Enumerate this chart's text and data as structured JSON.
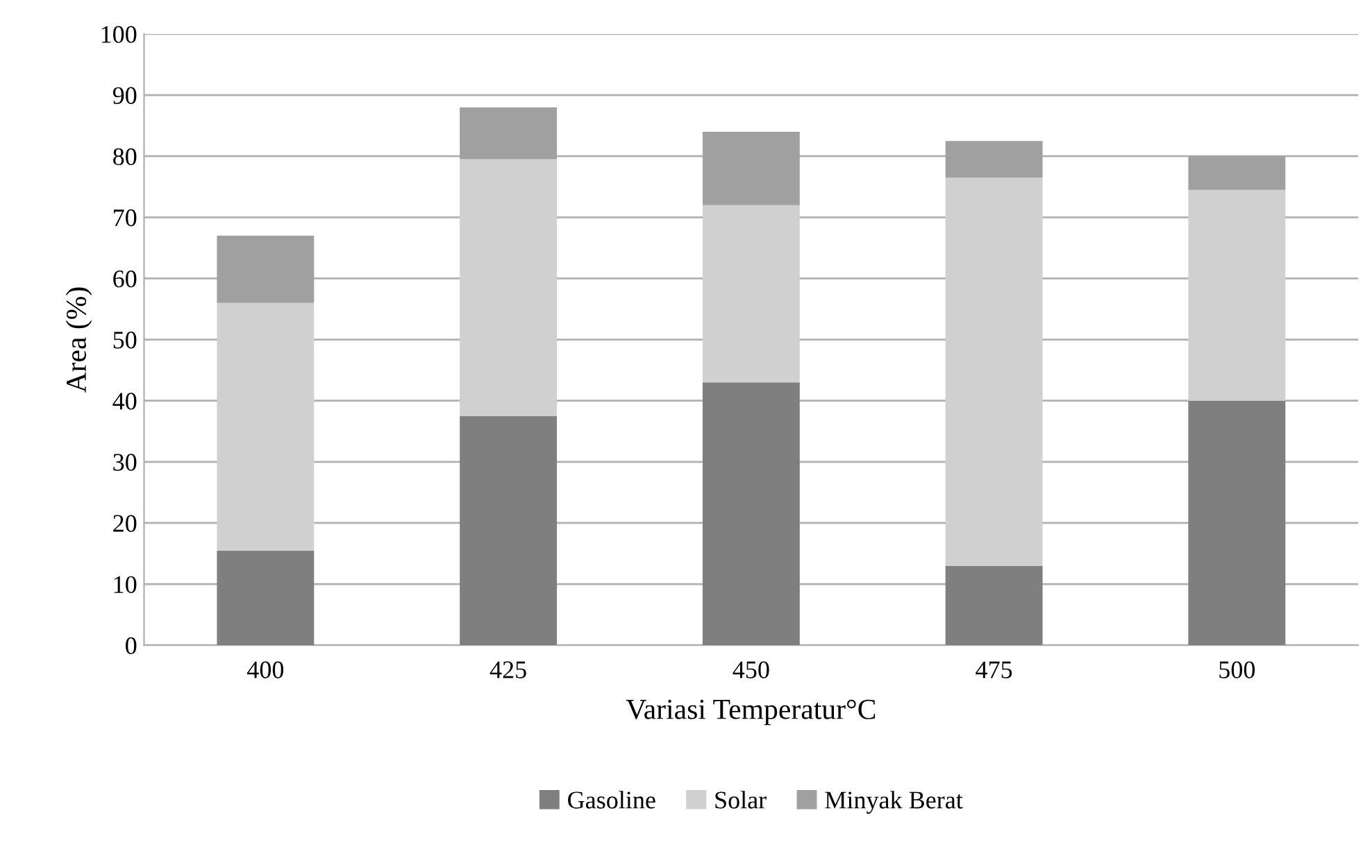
{
  "chart_data": {
    "type": "bar",
    "stacked": true,
    "xlabel": "Variasi Temperatur°C",
    "ylabel": "Area (%)",
    "categories": [
      "400",
      "425",
      "450",
      "475",
      "500"
    ],
    "series": [
      {
        "name": "Gasoline",
        "color": "#7f7f7f",
        "values": [
          15.5,
          37.5,
          43,
          13,
          40
        ]
      },
      {
        "name": "Solar",
        "color": "#d0d0d0",
        "values": [
          40.5,
          42,
          29,
          63.5,
          34.5
        ]
      },
      {
        "name": "Minyak Berat",
        "color": "#a0a0a0",
        "values": [
          11,
          8.5,
          12,
          6,
          5.5
        ]
      }
    ],
    "ylim": [
      0,
      100
    ],
    "yticks": [
      0,
      10,
      20,
      30,
      40,
      50,
      60,
      70,
      80,
      90,
      100
    ],
    "grid": "y",
    "legend": "bottom"
  }
}
